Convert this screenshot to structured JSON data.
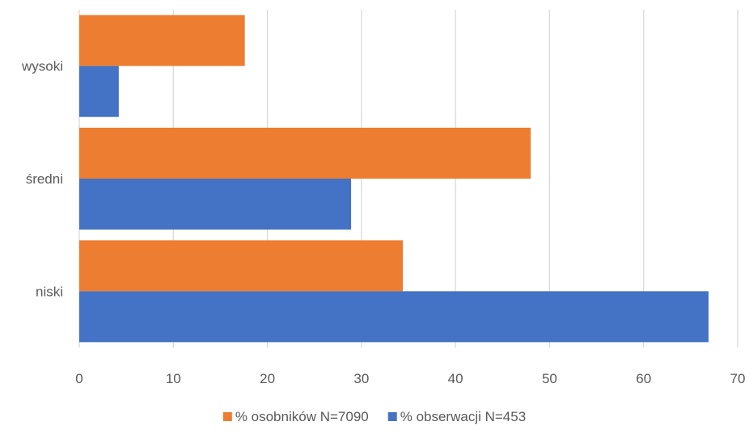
{
  "chart_data": {
    "type": "bar",
    "orientation": "horizontal",
    "categories": [
      "wysoki",
      "średni",
      "niski"
    ],
    "series": [
      {
        "name": "% osobników N=7090",
        "color": "#ED7D31",
        "values": [
          17.6,
          48.0,
          34.4
        ]
      },
      {
        "name": "% obserwacji N=453",
        "color": "#4472C4",
        "values": [
          4.2,
          28.9,
          66.9
        ]
      }
    ],
    "xlim": [
      0,
      70
    ],
    "xticks": [
      0,
      10,
      20,
      30,
      40,
      50,
      60,
      70
    ],
    "grid": true,
    "legend_position": "bottom"
  }
}
